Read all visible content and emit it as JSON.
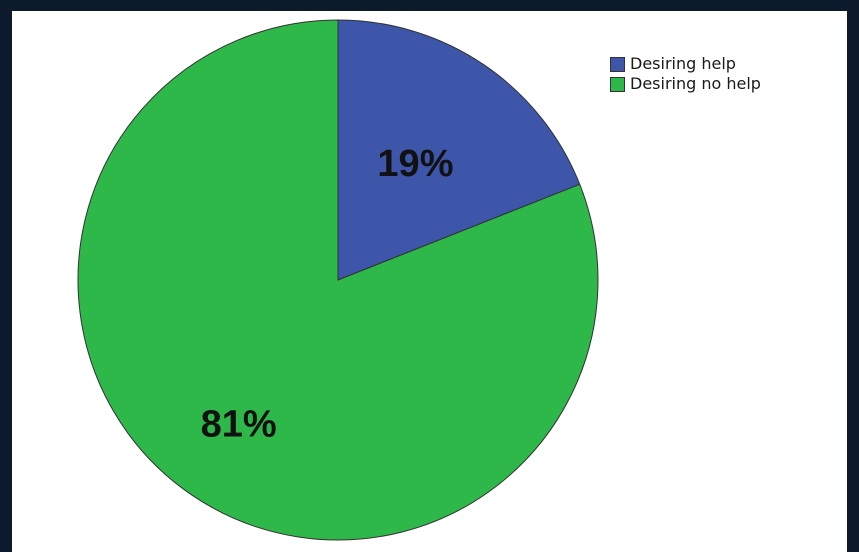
{
  "chart_data": {
    "type": "pie",
    "title": "",
    "slices": [
      {
        "name": "Desiring help",
        "value": 19,
        "label": "19%",
        "color": "#3d56aa"
      },
      {
        "name": "Desiring no help",
        "value": 81,
        "label": "81%",
        "color": "#2fb84a"
      }
    ],
    "legend_position": "top-right",
    "legend": [
      "Desiring help",
      "Desiring no help"
    ]
  }
}
